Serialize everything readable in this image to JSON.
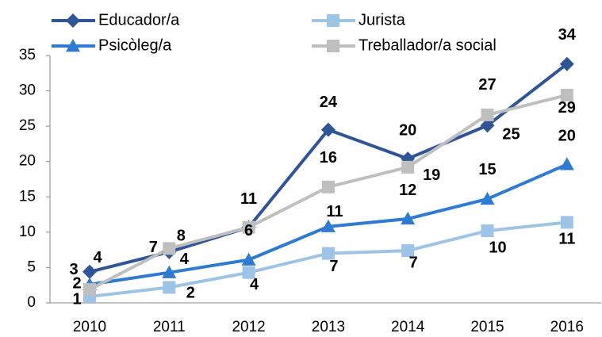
{
  "chart_data": {
    "type": "line",
    "categories": [
      "2010",
      "2011",
      "2012",
      "2013",
      "2014",
      "2015",
      "2016"
    ],
    "series": [
      {
        "name": "Educador/a",
        "color": "#2f5597",
        "marker": "diamond",
        "values": [
          4.4,
          7.2,
          10.7,
          24.5,
          20.4,
          25.1,
          33.8
        ],
        "value_labels": [
          "4",
          "7",
          "11",
          "24",
          "20",
          "25",
          "34"
        ]
      },
      {
        "name": "Jurista",
        "color": "#9dc3e6",
        "marker": "square",
        "values": [
          0.9,
          2.2,
          4.3,
          7.0,
          7.4,
          10.2,
          11.4
        ],
        "value_labels": [
          "1",
          "2",
          "4",
          "7",
          "7",
          "10",
          "11"
        ]
      },
      {
        "name": "Psicòleg/a",
        "color": "#2e7bd1",
        "marker": "triangle",
        "values": [
          2.6,
          4.3,
          6.1,
          10.8,
          11.9,
          14.7,
          19.6
        ],
        "value_labels": [
          "3",
          "4",
          "6",
          "11",
          "12",
          "15",
          "20"
        ]
      },
      {
        "name": "Treballador/a social",
        "color": "#bfbfbf",
        "marker": "square",
        "values": [
          1.9,
          7.7,
          10.7,
          16.4,
          19.2,
          26.6,
          29.4
        ],
        "value_labels": [
          "2",
          "8",
          null,
          "16",
          "19",
          "27",
          "29"
        ]
      }
    ],
    "ylim": [
      0,
      35
    ],
    "yticks": [
      0,
      5,
      10,
      15,
      20,
      25,
      30,
      35
    ],
    "grid": false
  }
}
